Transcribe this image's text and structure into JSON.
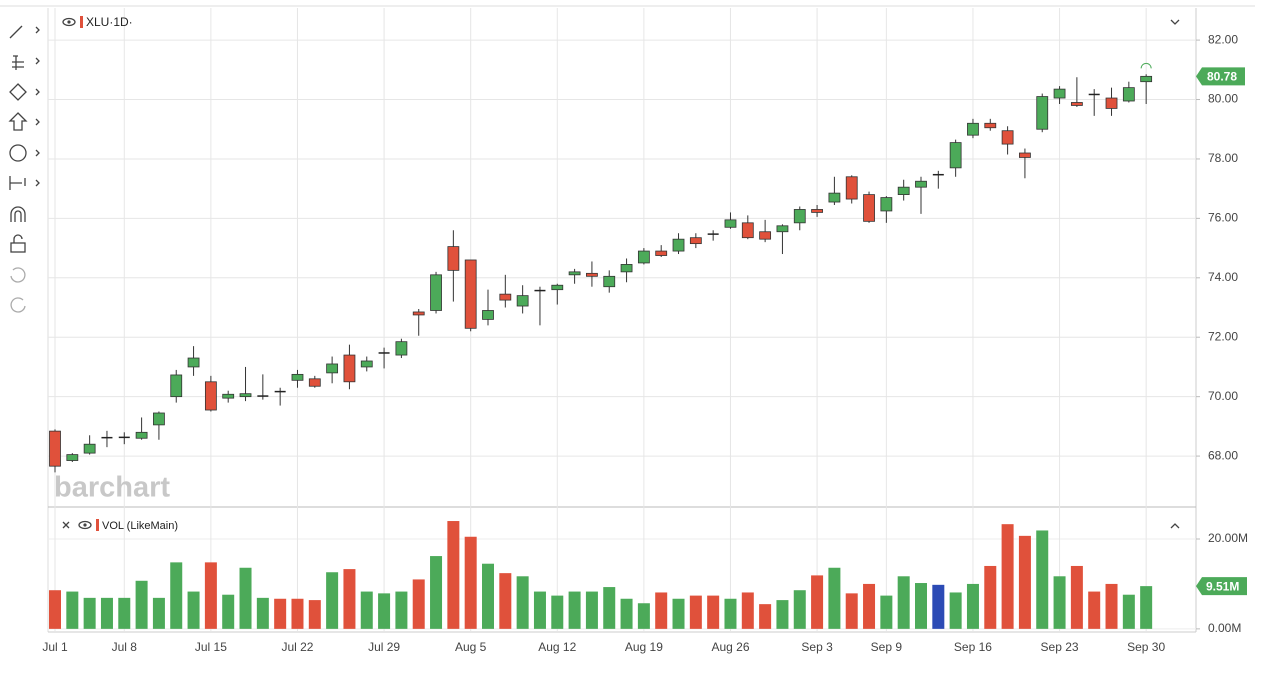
{
  "chart_data": [
    {
      "type": "candlestick",
      "title": "XLU·1D·",
      "watermark": "barchart",
      "categories": [
        "Jul 1",
        null,
        null,
        null,
        "Jul 8",
        null,
        null,
        null,
        null,
        "Jul 15",
        null,
        null,
        null,
        null,
        "Jul 22",
        null,
        null,
        null,
        null,
        "Jul 29",
        null,
        null,
        null,
        null,
        "Aug 5",
        null,
        null,
        null,
        null,
        "Aug 12",
        null,
        null,
        null,
        null,
        "Aug 19",
        null,
        null,
        null,
        null,
        "Aug 26",
        null,
        null,
        null,
        null,
        "Sep 3",
        null,
        null,
        null,
        "Sep 9",
        null,
        null,
        null,
        null,
        "Sep 16",
        null,
        null,
        null,
        null,
        "Sep 23",
        null,
        null,
        null,
        null,
        "Sep 30"
      ],
      "open": [
        68.84,
        67.85,
        68.1,
        68.62,
        68.63,
        68.6,
        69.05,
        70.0,
        71.0,
        70.5,
        69.95,
        70.0,
        70.02,
        70.17,
        70.55,
        70.6,
        70.8,
        71.4,
        71.0,
        71.47,
        71.4,
        72.85,
        72.9,
        75.05,
        74.6,
        72.6,
        73.45,
        73.05,
        73.57,
        73.6,
        74.1,
        74.15,
        73.7,
        74.2,
        74.5,
        74.9,
        74.9,
        75.35,
        75.47,
        75.7,
        75.85,
        75.55,
        75.55,
        75.85,
        76.3,
        76.55,
        77.4,
        76.8,
        76.25,
        76.8,
        77.05,
        77.47,
        77.7,
        78.8,
        79.2,
        78.95,
        78.2,
        79.0,
        80.05,
        79.9,
        80.17,
        80.05,
        79.95,
        80.6
      ],
      "high": [
        68.9,
        68.1,
        68.7,
        68.85,
        68.8,
        69.3,
        69.5,
        70.9,
        71.7,
        70.7,
        70.2,
        71.0,
        70.75,
        70.3,
        70.9,
        70.7,
        71.35,
        71.75,
        71.35,
        71.65,
        71.95,
        72.95,
        74.2,
        75.6,
        74.6,
        73.6,
        74.1,
        73.75,
        73.7,
        73.8,
        74.3,
        74.55,
        74.25,
        74.65,
        75.0,
        75.1,
        75.5,
        75.5,
        75.6,
        76.2,
        76.1,
        75.95,
        75.8,
        76.4,
        76.45,
        77.4,
        77.45,
        76.9,
        76.75,
        77.3,
        77.4,
        77.6,
        78.65,
        79.35,
        79.35,
        79.1,
        78.35,
        80.2,
        80.45,
        80.75,
        80.35,
        80.4,
        80.6,
        80.85
      ],
      "low": [
        67.45,
        67.8,
        68.05,
        68.3,
        68.4,
        68.55,
        68.55,
        69.8,
        70.7,
        69.5,
        69.8,
        69.85,
        69.9,
        69.7,
        70.3,
        70.3,
        70.45,
        70.25,
        70.85,
        70.95,
        71.3,
        72.05,
        72.8,
        73.2,
        72.2,
        72.4,
        73.0,
        72.8,
        72.4,
        73.1,
        73.8,
        73.7,
        73.5,
        73.85,
        74.45,
        74.7,
        74.8,
        75.0,
        75.25,
        75.65,
        75.3,
        75.2,
        74.8,
        75.6,
        76.05,
        76.45,
        76.5,
        75.85,
        75.85,
        76.6,
        76.15,
        77.0,
        77.4,
        78.7,
        78.95,
        78.15,
        77.35,
        78.9,
        79.85,
        79.75,
        79.45,
        79.45,
        79.9,
        79.85
      ],
      "close": [
        67.66,
        68.05,
        68.4,
        68.62,
        68.63,
        68.8,
        69.45,
        70.73,
        71.3,
        69.55,
        70.08,
        70.1,
        70.02,
        70.17,
        70.75,
        70.35,
        71.1,
        70.5,
        71.2,
        71.47,
        71.85,
        72.75,
        74.1,
        74.25,
        72.3,
        72.9,
        73.25,
        73.4,
        73.57,
        73.75,
        74.2,
        74.05,
        74.05,
        74.45,
        74.9,
        74.75,
        75.3,
        75.15,
        75.47,
        75.95,
        75.35,
        75.3,
        75.75,
        76.3,
        76.2,
        76.85,
        76.65,
        75.9,
        76.7,
        77.05,
        77.25,
        77.47,
        78.55,
        79.2,
        79.05,
        78.5,
        78.05,
        80.1,
        80.35,
        79.8,
        80.17,
        79.7,
        80.4,
        80.78
      ],
      "up_color": "#4caa59",
      "down_color": "#e0513b",
      "doji_color": "#222222",
      "ylim": [
        66.32,
        83.08
      ],
      "yticks": [
        {
          "value": 68,
          "label": "68.00"
        },
        {
          "value": 70,
          "label": "70.00"
        },
        {
          "value": 72,
          "label": "72.00"
        },
        {
          "value": 74,
          "label": "74.00"
        },
        {
          "value": 76,
          "label": "76.00"
        },
        {
          "value": 78,
          "label": "78.00"
        },
        {
          "value": 80,
          "label": "80.00"
        },
        {
          "value": 82,
          "label": "82.00"
        }
      ],
      "grid": true
    },
    {
      "type": "bar",
      "title": "VOL (LikeMain)",
      "values": [
        8.6,
        8.3,
        6.9,
        6.9,
        6.9,
        10.7,
        6.9,
        14.8,
        8.3,
        14.8,
        7.6,
        13.6,
        6.9,
        6.7,
        6.7,
        6.4,
        12.6,
        13.3,
        8.3,
        7.9,
        8.3,
        11.0,
        16.2,
        24.0,
        20.5,
        14.5,
        12.4,
        11.7,
        8.3,
        7.4,
        8.3,
        8.3,
        9.3,
        6.7,
        5.7,
        8.1,
        6.7,
        7.4,
        7.4,
        6.7,
        8.1,
        5.5,
        6.4,
        8.6,
        11.9,
        13.6,
        7.9,
        10.0,
        7.4,
        11.7,
        10.2,
        9.8,
        8.1,
        10.0,
        14.0,
        23.3,
        20.7,
        21.9,
        11.7,
        14.0,
        8.3,
        10.0,
        7.6,
        9.51
      ],
      "value_labels": [
        null,
        null,
        null,
        null,
        null,
        null,
        null,
        null,
        null,
        null,
        null,
        null,
        null,
        null,
        null,
        null,
        null,
        null,
        null,
        null,
        null,
        null,
        null,
        null,
        null,
        null,
        null,
        null,
        null,
        null,
        null,
        null,
        null,
        null,
        null,
        null,
        null,
        null,
        null,
        null,
        null,
        null,
        null,
        null,
        null,
        null,
        null,
        null,
        null,
        null,
        null,
        null,
        null,
        null,
        null,
        null,
        null,
        null,
        null,
        null,
        null,
        null,
        null,
        "9.51M"
      ],
      "colors": [
        "#e0513b",
        "#4caa59",
        "#4caa59",
        "#4caa59",
        "#4caa59",
        "#4caa59",
        "#4caa59",
        "#4caa59",
        "#4caa59",
        "#e0513b",
        "#4caa59",
        "#4caa59",
        "#4caa59",
        "#e0513b",
        "#e0513b",
        "#e0513b",
        "#4caa59",
        "#e0513b",
        "#4caa59",
        "#4caa59",
        "#4caa59",
        "#e0513b",
        "#4caa59",
        "#e0513b",
        "#e0513b",
        "#4caa59",
        "#e0513b",
        "#4caa59",
        "#4caa59",
        "#4caa59",
        "#4caa59",
        "#4caa59",
        "#4caa59",
        "#4caa59",
        "#4caa59",
        "#e0513b",
        "#4caa59",
        "#e0513b",
        "#e0513b",
        "#4caa59",
        "#e0513b",
        "#e0513b",
        "#4caa59",
        "#4caa59",
        "#e0513b",
        "#4caa59",
        "#e0513b",
        "#e0513b",
        "#4caa59",
        "#4caa59",
        "#4caa59",
        "#2c4bb5",
        "#4caa59",
        "#4caa59",
        "#e0513b",
        "#e0513b",
        "#e0513b",
        "#4caa59",
        "#4caa59",
        "#e0513b",
        "#e0513b",
        "#e0513b",
        "#4caa59",
        "#4caa59"
      ],
      "ylim": [
        -0.7,
        26.9
      ],
      "yticks": [
        {
          "value": 0,
          "label": "0.00M"
        },
        {
          "value": 20,
          "label": "20.00M"
        }
      ],
      "grid": true
    }
  ]
}
